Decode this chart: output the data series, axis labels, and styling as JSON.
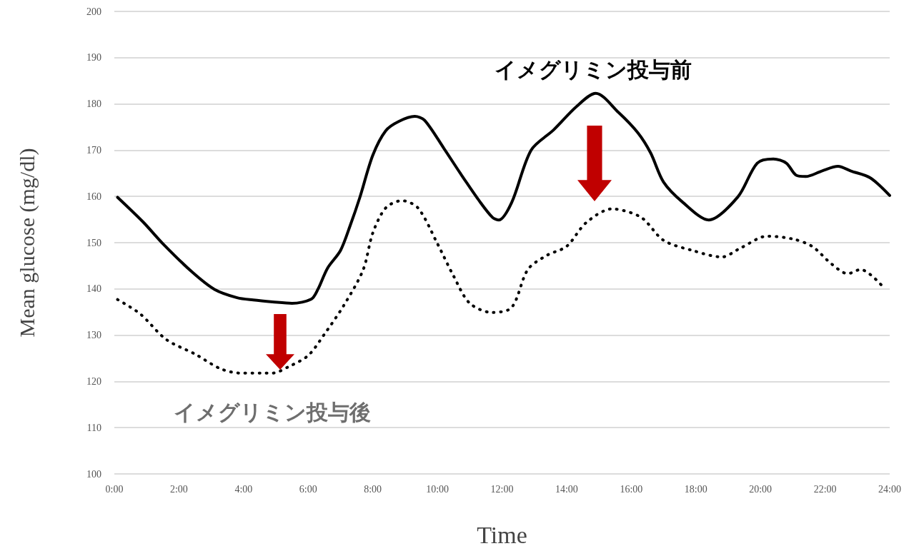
{
  "chart_data": {
    "type": "line",
    "xlabel": "Time",
    "ylabel": "Mean glucose (mg/dl)",
    "xlim": [
      0,
      24
    ],
    "ylim": [
      100,
      200
    ],
    "xticks": [
      {
        "value": 0,
        "label": "0:00"
      },
      {
        "value": 2,
        "label": "2:00"
      },
      {
        "value": 4,
        "label": "4:00"
      },
      {
        "value": 6,
        "label": "6:00"
      },
      {
        "value": 8,
        "label": "8:00"
      },
      {
        "value": 10,
        "label": "10:00"
      },
      {
        "value": 12,
        "label": "12:00"
      },
      {
        "value": 14,
        "label": "14:00"
      },
      {
        "value": 16,
        "label": "16:00"
      },
      {
        "value": 18,
        "label": "18:00"
      },
      {
        "value": 20,
        "label": "20:00"
      },
      {
        "value": 22,
        "label": "22:00"
      },
      {
        "value": 24,
        "label": "24:00"
      }
    ],
    "yticks": [
      100,
      110,
      120,
      130,
      140,
      150,
      160,
      170,
      180,
      190,
      200
    ],
    "grid": "y",
    "legend": false,
    "marker": "none",
    "series": [
      {
        "name": "イメグリミン投与前",
        "color": "#000000",
        "line_style": "solid",
        "x": [
          0.1,
          0.9,
          1.5,
          2.4,
          3.1,
          3.8,
          4.3,
          4.9,
          5.5,
          6.1,
          6.3,
          6.6,
          7.0,
          7.3,
          7.6,
          8.0,
          8.4,
          8.8,
          9.3,
          9.6,
          10.2,
          10.7,
          11.3,
          11.7,
          11.9,
          12.3,
          12.9,
          13.6,
          14.3,
          14.9,
          15.6,
          16.2,
          16.6,
          17.0,
          17.6,
          18.4,
          19.3,
          19.9,
          20.4,
          20.8,
          21.1,
          21.4,
          21.9,
          22.4,
          22.8,
          23.4,
          24.0
        ],
        "values": [
          159.8,
          154.4,
          149.8,
          143.7,
          139.9,
          138.1,
          137.6,
          137.2,
          136.9,
          137.8,
          139.9,
          144.5,
          148.3,
          153.7,
          159.8,
          168.9,
          174.2,
          176.2,
          177.3,
          176.5,
          170.4,
          165.1,
          159.0,
          155.5,
          154.9,
          158.7,
          170.0,
          174.4,
          179.4,
          182.3,
          178.2,
          173.8,
          169.4,
          163.1,
          158.7,
          154.9,
          159.9,
          167.2,
          168.1,
          167.2,
          164.6,
          164.3,
          165.5,
          166.5,
          165.5,
          164.0,
          160.2
        ]
      },
      {
        "name": "イメグリミン投与後",
        "color": "#000000",
        "line_style": "dotted",
        "x": [
          0.1,
          0.8,
          1.6,
          2.5,
          3.3,
          3.9,
          4.6,
          4.9,
          5.4,
          6.0,
          6.5,
          7.1,
          7.7,
          8.0,
          8.4,
          8.9,
          9.4,
          10.0,
          10.5,
          11.0,
          11.7,
          12.3,
          12.8,
          13.4,
          14.0,
          14.6,
          15.4,
          16.3,
          17.0,
          17.9,
          18.8,
          19.4,
          20.2,
          21.0,
          21.6,
          22.2,
          22.7,
          23.1,
          23.8
        ],
        "values": [
          137.7,
          134.6,
          129.1,
          125.9,
          122.7,
          121.8,
          121.8,
          121.8,
          123.2,
          125.6,
          130.2,
          136.4,
          144.1,
          152.1,
          157.5,
          159.1,
          157.5,
          149.8,
          142.8,
          136.9,
          134.9,
          136.0,
          144.2,
          147.3,
          149.2,
          154.3,
          157.3,
          155.5,
          150.5,
          148.3,
          146.9,
          148.9,
          151.4,
          150.8,
          149.2,
          145.4,
          143.3,
          144.2,
          140.4
        ]
      }
    ]
  }
}
